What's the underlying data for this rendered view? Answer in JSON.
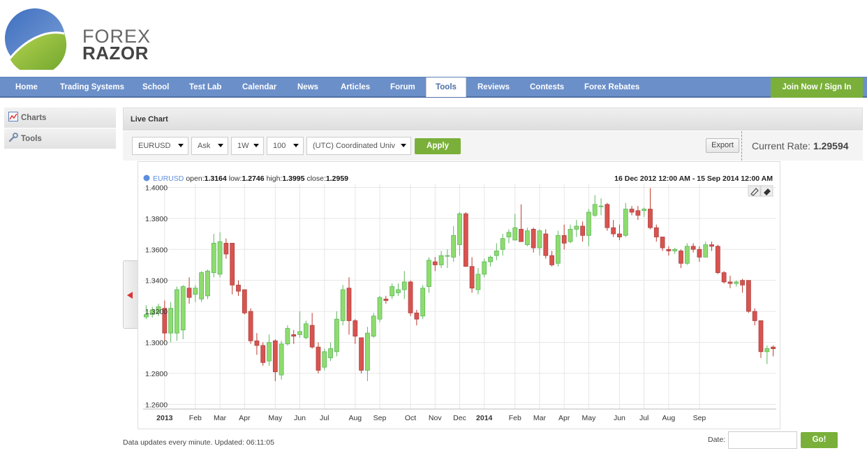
{
  "logo": {
    "line1": "FOREX",
    "line2": "RAZOR"
  },
  "nav": {
    "items": [
      "Home",
      "Trading Systems",
      "School",
      "Test Lab",
      "Calendar",
      "News",
      "Articles",
      "Forum",
      "Tools",
      "Reviews",
      "Contests",
      "Forex Rebates"
    ],
    "active": "Tools",
    "join": "Join Now / Sign In"
  },
  "sidebar": {
    "items": [
      "Charts",
      "Tools"
    ]
  },
  "panel": {
    "title": "Live Chart"
  },
  "toolbar": {
    "symbol": "EURUSD",
    "price_type": "Ask",
    "period": "1W",
    "count": "100",
    "timezone": "(UTC) Coordinated Univ",
    "apply": "Apply",
    "export": "Export",
    "rate_label": "Current Rate:",
    "rate_value": "1.29594"
  },
  "legend": {
    "symbol": "EURUSD",
    "open_label": "open:",
    "open": "1.3164",
    "low_label": "low:",
    "low": "1.2746",
    "high_label": "high:",
    "high": "1.3995",
    "close_label": "close:",
    "close": "1.2959",
    "range": "16 Dec 2012 12:00 AM - 15 Sep 2014 12:00 AM"
  },
  "colors": {
    "up": "#8fdc6e",
    "down": "#d9534f",
    "accent": "#7ab03a",
    "nav": "#6b8fc9"
  },
  "chart_data": {
    "type": "candlestick",
    "y_ticks": [
      "1.2600",
      "1.2800",
      "1.3000",
      "1.3200",
      "1.3400",
      "1.3600",
      "1.3800",
      "1.4000"
    ],
    "ylim": [
      1.257,
      1.402
    ],
    "x_labels": [
      {
        "label": "2013",
        "index": 3,
        "bold": true
      },
      {
        "label": "Feb",
        "index": 8
      },
      {
        "label": "Mar",
        "index": 12
      },
      {
        "label": "Apr",
        "index": 16
      },
      {
        "label": "May",
        "index": 21
      },
      {
        "label": "Jun",
        "index": 25
      },
      {
        "label": "Jul",
        "index": 29
      },
      {
        "label": "Aug",
        "index": 34
      },
      {
        "label": "Sep",
        "index": 38
      },
      {
        "label": "Oct",
        "index": 43
      },
      {
        "label": "Nov",
        "index": 47
      },
      {
        "label": "Dec",
        "index": 51
      },
      {
        "label": "2014",
        "index": 55,
        "bold": true
      },
      {
        "label": "Feb",
        "index": 60
      },
      {
        "label": "Mar",
        "index": 64
      },
      {
        "label": "Apr",
        "index": 68
      },
      {
        "label": "May",
        "index": 72
      },
      {
        "label": "Jun",
        "index": 77
      },
      {
        "label": "Jul",
        "index": 81
      },
      {
        "label": "Aug",
        "index": 85
      },
      {
        "label": "Sep",
        "index": 90
      }
    ],
    "ohlc": [
      [
        1.3164,
        1.324,
        1.315,
        1.318
      ],
      [
        1.318,
        1.323,
        1.316,
        1.321
      ],
      [
        1.319,
        1.325,
        1.317,
        1.323
      ],
      [
        1.322,
        1.327,
        1.301,
        1.306
      ],
      [
        1.306,
        1.326,
        1.3,
        1.322
      ],
      [
        1.306,
        1.336,
        1.301,
        1.334
      ],
      [
        1.308,
        1.337,
        1.302,
        1.336
      ],
      [
        1.335,
        1.342,
        1.325,
        1.329
      ],
      [
        1.331,
        1.337,
        1.326,
        1.335
      ],
      [
        1.328,
        1.346,
        1.326,
        1.345
      ],
      [
        1.33,
        1.347,
        1.328,
        1.346
      ],
      [
        1.345,
        1.37,
        1.342,
        1.364
      ],
      [
        1.344,
        1.371,
        1.342,
        1.365
      ],
      [
        1.364,
        1.367,
        1.354,
        1.357
      ],
      [
        1.364,
        1.364,
        1.331,
        1.337
      ],
      [
        1.337,
        1.34,
        1.33,
        1.333
      ],
      [
        1.334,
        1.334,
        1.318,
        1.319
      ],
      [
        1.32,
        1.322,
        1.299,
        1.301
      ],
      [
        1.301,
        1.306,
        1.292,
        1.298
      ],
      [
        1.298,
        1.3,
        1.285,
        1.287
      ],
      [
        1.288,
        1.305,
        1.285,
        1.3
      ],
      [
        1.301,
        1.302,
        1.275,
        1.281
      ],
      [
        1.279,
        1.301,
        1.276,
        1.299
      ],
      [
        1.299,
        1.311,
        1.298,
        1.309
      ],
      [
        1.305,
        1.308,
        1.299,
        1.304
      ],
      [
        1.305,
        1.32,
        1.303,
        1.307
      ],
      [
        1.303,
        1.314,
        1.302,
        1.312
      ],
      [
        1.311,
        1.319,
        1.296,
        1.297
      ],
      [
        1.297,
        1.3,
        1.28,
        1.282
      ],
      [
        1.284,
        1.296,
        1.282,
        1.294
      ],
      [
        1.29,
        1.3,
        1.288,
        1.296
      ],
      [
        1.294,
        1.32,
        1.291,
        1.315
      ],
      [
        1.314,
        1.337,
        1.311,
        1.334
      ],
      [
        1.335,
        1.342,
        1.305,
        1.314
      ],
      [
        1.314,
        1.315,
        1.299,
        1.304
      ],
      [
        1.303,
        1.303,
        1.28,
        1.282
      ],
      [
        1.282,
        1.31,
        1.275,
        1.306
      ],
      [
        1.304,
        1.319,
        1.303,
        1.317
      ],
      [
        1.315,
        1.33,
        1.313,
        1.329
      ],
      [
        1.328,
        1.33,
        1.325,
        1.327
      ],
      [
        1.33,
        1.338,
        1.328,
        1.336
      ],
      [
        1.332,
        1.338,
        1.33,
        1.334
      ],
      [
        1.334,
        1.346,
        1.328,
        1.339
      ],
      [
        1.339,
        1.34,
        1.317,
        1.319
      ],
      [
        1.319,
        1.321,
        1.311,
        1.315
      ],
      [
        1.317,
        1.337,
        1.315,
        1.335
      ],
      [
        1.336,
        1.355,
        1.332,
        1.353
      ],
      [
        1.352,
        1.355,
        1.346,
        1.35
      ],
      [
        1.35,
        1.359,
        1.348,
        1.356
      ],
      [
        1.356,
        1.36,
        1.348,
        1.356
      ],
      [
        1.355,
        1.375,
        1.352,
        1.369
      ],
      [
        1.363,
        1.384,
        1.356,
        1.383
      ],
      [
        1.383,
        1.384,
        1.35,
        1.349
      ],
      [
        1.349,
        1.355,
        1.332,
        1.335
      ],
      [
        1.334,
        1.348,
        1.331,
        1.344
      ],
      [
        1.344,
        1.354,
        1.342,
        1.352
      ],
      [
        1.352,
        1.356,
        1.349,
        1.355
      ],
      [
        1.356,
        1.364,
        1.353,
        1.359
      ],
      [
        1.36,
        1.37,
        1.356,
        1.367
      ],
      [
        1.368,
        1.373,
        1.364,
        1.371
      ],
      [
        1.366,
        1.383,
        1.366,
        1.374
      ],
      [
        1.373,
        1.389,
        1.365,
        1.365
      ],
      [
        1.363,
        1.374,
        1.362,
        1.372
      ],
      [
        1.373,
        1.374,
        1.358,
        1.361
      ],
      [
        1.361,
        1.373,
        1.356,
        1.372
      ],
      [
        1.37,
        1.373,
        1.354,
        1.356
      ],
      [
        1.356,
        1.359,
        1.349,
        1.35
      ],
      [
        1.351,
        1.372,
        1.349,
        1.369
      ],
      [
        1.369,
        1.376,
        1.36,
        1.364
      ],
      [
        1.365,
        1.376,
        1.364,
        1.373
      ],
      [
        1.373,
        1.379,
        1.368,
        1.375
      ],
      [
        1.375,
        1.378,
        1.365,
        1.369
      ],
      [
        1.369,
        1.386,
        1.362,
        1.384
      ],
      [
        1.382,
        1.395,
        1.381,
        1.389
      ],
      [
        1.388,
        1.393,
        1.382,
        1.388
      ],
      [
        1.389,
        1.39,
        1.372,
        1.374
      ],
      [
        1.374,
        1.379,
        1.368,
        1.37
      ],
      [
        1.37,
        1.376,
        1.366,
        1.368
      ],
      [
        1.369,
        1.39,
        1.368,
        1.386
      ],
      [
        1.386,
        1.388,
        1.382,
        1.384
      ],
      [
        1.385,
        1.388,
        1.379,
        1.382
      ],
      [
        1.385,
        1.387,
        1.381,
        1.386
      ],
      [
        1.386,
        1.3995,
        1.373,
        1.374
      ],
      [
        1.374,
        1.376,
        1.365,
        1.368
      ],
      [
        1.368,
        1.368,
        1.359,
        1.361
      ],
      [
        1.36,
        1.362,
        1.356,
        1.359
      ],
      [
        1.359,
        1.361,
        1.357,
        1.36
      ],
      [
        1.359,
        1.36,
        1.348,
        1.351
      ],
      [
        1.351,
        1.364,
        1.35,
        1.362
      ],
      [
        1.362,
        1.364,
        1.358,
        1.36
      ],
      [
        1.36,
        1.362,
        1.352,
        1.355
      ],
      [
        1.355,
        1.365,
        1.355,
        1.363
      ],
      [
        1.363,
        1.365,
        1.359,
        1.362
      ],
      [
        1.362,
        1.363,
        1.344,
        1.345
      ],
      [
        1.345,
        1.346,
        1.338,
        1.339
      ],
      [
        1.339,
        1.343,
        1.335,
        1.338
      ],
      [
        1.338,
        1.34,
        1.336,
        1.339
      ],
      [
        1.34,
        1.341,
        1.332,
        1.337
      ],
      [
        1.34,
        1.34,
        1.319,
        1.32
      ],
      [
        1.32,
        1.322,
        1.311,
        1.314
      ],
      [
        1.314,
        1.314,
        1.29,
        1.294
      ],
      [
        1.294,
        1.298,
        1.286,
        1.296
      ],
      [
        1.297,
        1.298,
        1.291,
        1.2959
      ]
    ]
  },
  "footer": {
    "note": "Data updates every minute. Updated: 06:11:05",
    "date_label": "Date:",
    "go": "Go!"
  }
}
